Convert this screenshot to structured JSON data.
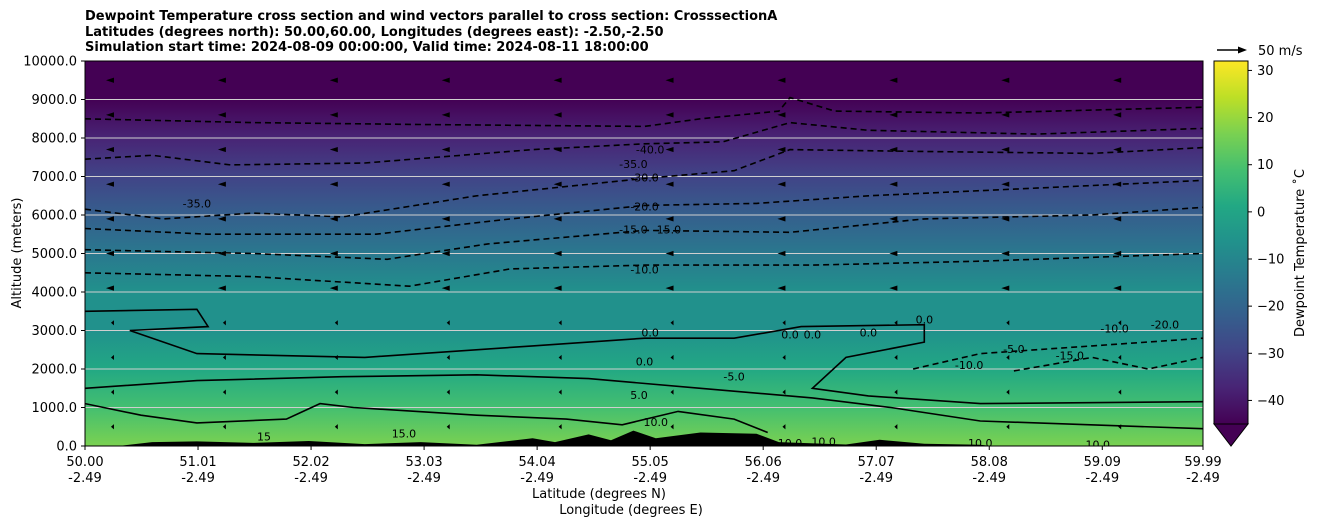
{
  "chart_data": {
    "type": "contour",
    "title_lines": [
      "Dewpoint Temperature cross section and wind vectors parallel to cross section: CrosssectionA",
      "Latitudes (degrees north): 50.00,60.00, Longitudes (degrees east): -2.50,-2.50",
      "Simulation start time: 2024-08-09 00:00:00, Valid time: 2024-08-11 18:00:00"
    ],
    "ylabel": "Altitude (meters)",
    "xlabel_lat": "Latitude (degrees N)",
    "xlabel_lon": "Longitude (degrees E)",
    "xlim": [
      50.0,
      59.99
    ],
    "ylim": [
      0,
      10000
    ],
    "y_ticks": [
      {
        "value": 0,
        "label": "0.0"
      },
      {
        "value": 1000,
        "label": "1000.0"
      },
      {
        "value": 2000,
        "label": "2000.0"
      },
      {
        "value": 3000,
        "label": "3000.0"
      },
      {
        "value": 4000,
        "label": "4000.0"
      },
      {
        "value": 5000,
        "label": "5000.0"
      },
      {
        "value": 6000,
        "label": "6000.0"
      },
      {
        "value": 7000,
        "label": "7000.0"
      },
      {
        "value": 8000,
        "label": "8000.0"
      },
      {
        "value": 9000,
        "label": "9000.0"
      },
      {
        "value": 10000,
        "label": "10000.0"
      }
    ],
    "x_ticks": [
      {
        "lat": 50.0,
        "lat_label": "50.00",
        "lon_label": "-2.49"
      },
      {
        "lat": 51.01,
        "lat_label": "51.01",
        "lon_label": "-2.49"
      },
      {
        "lat": 52.02,
        "lat_label": "52.02",
        "lon_label": "-2.49"
      },
      {
        "lat": 53.03,
        "lat_label": "53.03",
        "lon_label": "-2.49"
      },
      {
        "lat": 54.04,
        "lat_label": "54.04",
        "lon_label": "-2.49"
      },
      {
        "lat": 55.05,
        "lat_label": "55.05",
        "lon_label": "-2.49"
      },
      {
        "lat": 56.06,
        "lat_label": "56.06",
        "lon_label": "-2.49"
      },
      {
        "lat": 57.07,
        "lat_label": "57.07",
        "lon_label": "-2.49"
      },
      {
        "lat": 58.08,
        "lat_label": "58.08",
        "lon_label": "-2.49"
      },
      {
        "lat": 59.09,
        "lat_label": "59.09",
        "lon_label": "-2.49"
      },
      {
        "lat": 59.99,
        "lat_label": "59.99",
        "lon_label": "-2.49"
      }
    ],
    "colorbar": {
      "label": "Dewpoint Temperature ˚C",
      "min": -45,
      "max": 32,
      "extend": "min",
      "ticks": [
        {
          "value": -40,
          "label": "−40"
        },
        {
          "value": -30,
          "label": "−30"
        },
        {
          "value": -20,
          "label": "−20"
        },
        {
          "value": -10,
          "label": "−10"
        },
        {
          "value": 0,
          "label": "0"
        },
        {
          "value": 10,
          "label": "10"
        },
        {
          "value": 20,
          "label": "20"
        },
        {
          "value": 30,
          "label": "30"
        }
      ],
      "colors": [
        "#440154",
        "#482475",
        "#414487",
        "#355f8d",
        "#2a788e",
        "#21918c",
        "#22a884",
        "#44bf70",
        "#7ad151",
        "#bddf26",
        "#fde725"
      ]
    },
    "wind_reference": {
      "label": "50 m/s",
      "speed": 50
    },
    "approx_dewpoint_profile": [
      {
        "alt": 0,
        "temp": 15
      },
      {
        "alt": 1000,
        "temp": 8
      },
      {
        "alt": 2000,
        "temp": 2
      },
      {
        "alt": 3000,
        "temp": -3
      },
      {
        "alt": 4000,
        "temp": -9
      },
      {
        "alt": 5000,
        "temp": -14
      },
      {
        "alt": 6000,
        "temp": -22
      },
      {
        "alt": 7000,
        "temp": -30
      },
      {
        "alt": 8000,
        "temp": -38
      },
      {
        "alt": 9000,
        "temp": -44
      },
      {
        "alt": 10000,
        "temp": -46
      }
    ],
    "contours": [
      {
        "level": -40,
        "style": "dashed",
        "points": [
          [
            50.0,
            8500
          ],
          [
            51.5,
            8400
          ],
          [
            53,
            8350
          ],
          [
            55,
            8300
          ],
          [
            55.5,
            8500
          ],
          [
            56.2,
            8700
          ],
          [
            56.3,
            9050
          ],
          [
            56.7,
            8700
          ],
          [
            58,
            8650
          ],
          [
            59.99,
            8800
          ]
        ]
      },
      {
        "level": -35,
        "style": "dashed",
        "points": [
          [
            50.0,
            7450
          ],
          [
            50.6,
            7550
          ],
          [
            51.3,
            7300
          ],
          [
            52.5,
            7350
          ],
          [
            54,
            7700
          ],
          [
            55,
            7850
          ],
          [
            55.7,
            7900
          ],
          [
            56.3,
            8400
          ],
          [
            57,
            8200
          ],
          [
            58.5,
            8100
          ],
          [
            59.99,
            8250
          ]
        ]
      },
      {
        "level": -30,
        "style": "dashed",
        "points": [
          [
            50.0,
            6150
          ],
          [
            50.7,
            5900
          ],
          [
            51.5,
            6050
          ],
          [
            52.3,
            5950
          ],
          [
            53.5,
            6500
          ],
          [
            55,
            6950
          ],
          [
            55.8,
            7150
          ],
          [
            56.3,
            7700
          ],
          [
            57.5,
            7650
          ],
          [
            59,
            7600
          ],
          [
            59.99,
            7750
          ]
        ]
      },
      {
        "level": -20,
        "style": "dashed",
        "points": [
          [
            50.0,
            5650
          ],
          [
            51.1,
            5500
          ],
          [
            52.6,
            5500
          ],
          [
            53.8,
            5900
          ],
          [
            55,
            6250
          ],
          [
            56,
            6300
          ],
          [
            57,
            6500
          ],
          [
            58.5,
            6700
          ],
          [
            59.99,
            6900
          ]
        ]
      },
      {
        "level": -15,
        "style": "dashed",
        "points": [
          [
            50.0,
            5100
          ],
          [
            51.5,
            5000
          ],
          [
            52.7,
            4850
          ],
          [
            53.6,
            5250
          ],
          [
            55,
            5600
          ],
          [
            56.3,
            5550
          ],
          [
            57.5,
            5900
          ],
          [
            59,
            6000
          ],
          [
            59.99,
            6200
          ]
        ]
      },
      {
        "level": -10,
        "style": "dashed",
        "points": [
          [
            50.0,
            4500
          ],
          [
            51.5,
            4400
          ],
          [
            52.9,
            4150
          ],
          [
            53.8,
            4600
          ],
          [
            55,
            4700
          ],
          [
            56.5,
            4700
          ],
          [
            58,
            4800
          ],
          [
            59.99,
            5000
          ]
        ]
      },
      {
        "level": -10,
        "style": "dashed",
        "points": [
          [
            57.4,
            2000
          ],
          [
            58,
            2400
          ],
          [
            59,
            2600
          ],
          [
            59.99,
            2800
          ]
        ]
      },
      {
        "level": -15,
        "style": "dashed",
        "points": [
          [
            58.3,
            1950
          ],
          [
            59,
            2300
          ],
          [
            59.5,
            2000
          ],
          [
            59.99,
            2300
          ]
        ]
      },
      {
        "level": 0,
        "style": "solid",
        "points": [
          [
            50.0,
            3500
          ],
          [
            51,
            3550
          ],
          [
            51.1,
            3100
          ],
          [
            50.4,
            3000
          ],
          [
            51,
            2400
          ],
          [
            52.5,
            2300
          ],
          [
            54,
            2600
          ],
          [
            55,
            2800
          ],
          [
            55.8,
            2800
          ],
          [
            56.4,
            3100
          ],
          [
            57.5,
            3150
          ],
          [
            57.5,
            2700
          ],
          [
            56.8,
            2300
          ],
          [
            56.5,
            1500
          ],
          [
            57,
            1300
          ],
          [
            58,
            1100
          ],
          [
            59.99,
            1150
          ]
        ]
      },
      {
        "level": 5,
        "style": "solid",
        "points": [
          [
            50.0,
            1500
          ],
          [
            51,
            1700
          ],
          [
            52.3,
            1800
          ],
          [
            53.5,
            1850
          ],
          [
            54.5,
            1750
          ],
          [
            55.5,
            1500
          ],
          [
            56.5,
            1250
          ],
          [
            57.2,
            1000
          ],
          [
            58,
            650
          ],
          [
            59.99,
            450
          ]
        ]
      },
      {
        "level": 10,
        "style": "solid",
        "points": [
          [
            50.0,
            1100
          ],
          [
            50.5,
            800
          ],
          [
            51,
            600
          ],
          [
            51.8,
            700
          ],
          [
            52.1,
            1100
          ],
          [
            52.4,
            1000
          ],
          [
            53.5,
            800
          ],
          [
            54.3,
            700
          ],
          [
            54.8,
            550
          ],
          [
            55.3,
            900
          ],
          [
            55.8,
            700
          ],
          [
            56.1,
            350
          ]
        ]
      }
    ],
    "contour_labels": [
      {
        "text": "-40.0",
        "lat": 55.05,
        "alt": 7700
      },
      {
        "text": "-35.0",
        "lat": 54.9,
        "alt": 7330
      },
      {
        "text": "-30.0",
        "lat": 55.0,
        "alt": 6980
      },
      {
        "text": "-35.0",
        "lat": 51.0,
        "alt": 6300
      },
      {
        "text": "-20.0",
        "lat": 55.0,
        "alt": 6220
      },
      {
        "text": "-15.0",
        "lat": 54.9,
        "alt": 5620
      },
      {
        "text": "-15.0",
        "lat": 55.2,
        "alt": 5620
      },
      {
        "text": "-10.0",
        "lat": 55.0,
        "alt": 4580
      },
      {
        "text": "0.0",
        "lat": 55.05,
        "alt": 2950
      },
      {
        "text": "0.0",
        "lat": 56.3,
        "alt": 2900
      },
      {
        "text": "0.0",
        "lat": 56.5,
        "alt": 2900
      },
      {
        "text": "0.0",
        "lat": 57.0,
        "alt": 2950
      },
      {
        "text": "0.0",
        "lat": 57.5,
        "alt": 3280
      },
      {
        "text": "-10.0",
        "lat": 59.2,
        "alt": 3050
      },
      {
        "text": "-20.0",
        "lat": 59.65,
        "alt": 3150
      },
      {
        "text": "-5.0",
        "lat": 58.3,
        "alt": 2520
      },
      {
        "text": "-15.0",
        "lat": 58.8,
        "alt": 2350
      },
      {
        "text": "-10.0",
        "lat": 57.9,
        "alt": 2100
      },
      {
        "text": "0.0",
        "lat": 55.0,
        "alt": 2200
      },
      {
        "text": "-5.0",
        "lat": 55.8,
        "alt": 1800
      },
      {
        "text": "5.0",
        "lat": 54.95,
        "alt": 1330
      },
      {
        "text": "10.0",
        "lat": 55.1,
        "alt": 620
      },
      {
        "text": "15",
        "lat": 51.6,
        "alt": 250
      },
      {
        "text": "15.0",
        "lat": 52.85,
        "alt": 330
      },
      {
        "text": "10.0",
        "lat": 56.3,
        "alt": 80
      },
      {
        "text": "10.0",
        "lat": 56.6,
        "alt": 120
      },
      {
        "text": "10.0",
        "lat": 58.0,
        "alt": 80
      },
      {
        "text": "10.0",
        "lat": 59.05,
        "alt": 40
      }
    ],
    "terrain": [
      [
        50.3,
        0
      ],
      [
        50.6,
        100
      ],
      [
        51.0,
        120
      ],
      [
        51.5,
        80
      ],
      [
        52.0,
        130
      ],
      [
        52.5,
        50
      ],
      [
        53.0,
        100
      ],
      [
        53.5,
        30
      ],
      [
        54.0,
        200
      ],
      [
        54.2,
        100
      ],
      [
        54.5,
        300
      ],
      [
        54.7,
        150
      ],
      [
        54.9,
        400
      ],
      [
        55.1,
        200
      ],
      [
        55.5,
        350
      ],
      [
        56.0,
        320
      ],
      [
        56.2,
        100
      ],
      [
        56.8,
        40
      ],
      [
        57.1,
        160
      ],
      [
        57.5,
        60
      ],
      [
        58.0,
        30
      ],
      [
        58.1,
        0
      ]
    ]
  }
}
